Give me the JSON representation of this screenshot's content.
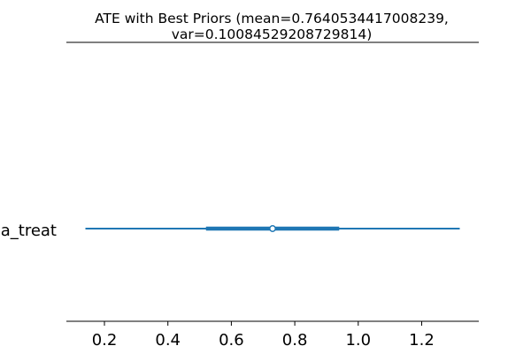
{
  "chart_data": {
    "type": "forest",
    "title_lines": [
      "ATE with Best Priors (mean=0.7640534417008239,",
      "var=0.10084529208729814)"
    ],
    "categories": [
      "a_treat"
    ],
    "point": 0.73,
    "interval_outer": [
      0.14,
      1.32
    ],
    "interval_inner": [
      0.52,
      0.94
    ],
    "xlim": [
      0.08,
      1.38
    ],
    "xticks": [
      0.2,
      0.4,
      0.6,
      0.8,
      1.0,
      1.2
    ],
    "xtick_labels": [
      "0.2",
      "0.4",
      "0.6",
      "0.8",
      "1.0",
      "1.2"
    ],
    "grid": false,
    "colors": {
      "series": "#1f77b4",
      "axis": "#000000"
    }
  }
}
